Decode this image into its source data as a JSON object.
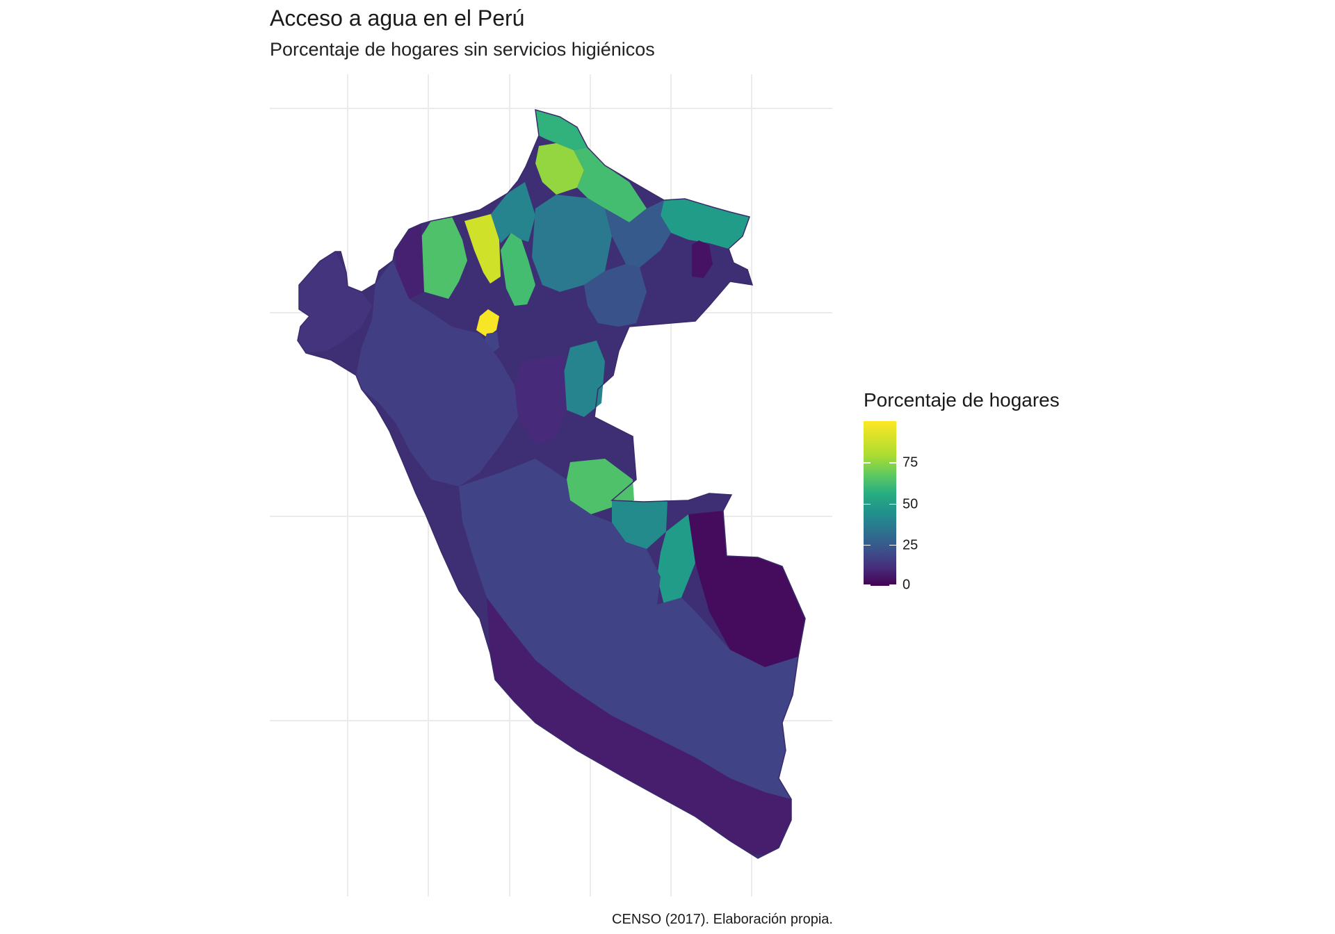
{
  "title": "Acceso a agua en el Perú",
  "subtitle": "Porcentaje de hogares sin servicios higiénicos",
  "legend": {
    "title": "Porcentaje de hogares",
    "scale": "viridis",
    "min": 0,
    "max": 100,
    "breaks": [
      {
        "value": 0,
        "label": "0"
      },
      {
        "value": 25,
        "label": "25"
      },
      {
        "value": 50,
        "label": "50"
      },
      {
        "value": 75,
        "label": "75"
      }
    ],
    "colors": [
      "#440154",
      "#3b528b",
      "#21908d",
      "#5cc863",
      "#fde725"
    ]
  },
  "caption": "CENSO (2017). Elaboración propia.",
  "map": {
    "background": "#ffffff",
    "grid_color": "#ebebeb",
    "missing_color": "#808080",
    "regions": [
      {
        "id": "north-tip",
        "value": 65
      },
      {
        "id": "napo",
        "value": 84
      },
      {
        "id": "putumayo-east",
        "value": 70
      },
      {
        "id": "far-east-loreto",
        "value": 55
      },
      {
        "id": "ramon-castilla",
        "value": 5
      },
      {
        "id": "pastaza",
        "value": 72
      },
      {
        "id": "north-yellow",
        "value": 93
      },
      {
        "id": "corrientes",
        "value": 70
      },
      {
        "id": "tigre",
        "value": 45
      },
      {
        "id": "loreto-central",
        "value": 40
      },
      {
        "id": "maranon",
        "value": 28
      },
      {
        "id": "requena",
        "value": 25
      },
      {
        "id": "amazonas-north",
        "value": 9
      },
      {
        "id": "condorcanqui",
        "value": 99
      },
      {
        "id": "san-martin-mix",
        "value": 20
      },
      {
        "id": "ucayali-east",
        "value": 45
      },
      {
        "id": "ucayali-central",
        "value": 12
      },
      {
        "id": "atalaya",
        "value": 72
      },
      {
        "id": "purus",
        "value": 48
      },
      {
        "id": "madre-de-dios",
        "value": 3
      },
      {
        "id": "manu",
        "value": 55
      },
      {
        "id": "tambopata-yellow",
        "value": 92
      },
      {
        "id": "cusco-missing",
        "value": null
      },
      {
        "id": "coast-north",
        "value": 15
      },
      {
        "id": "andes-central",
        "value": 18
      },
      {
        "id": "south-andes",
        "value": 20
      },
      {
        "id": "south-coast",
        "value": 8
      }
    ]
  }
}
